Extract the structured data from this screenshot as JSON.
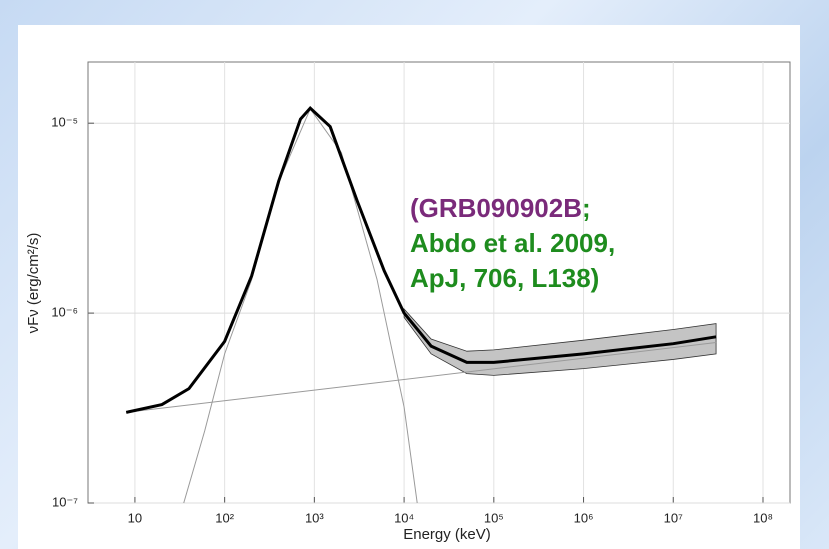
{
  "chart_data": {
    "type": "line",
    "x_label": "Energy (keV)",
    "y_label": "νFν (erg/cm²/s)",
    "log_x": true,
    "log_y": true,
    "grid": true,
    "xlim": [
      3,
      200000000
    ],
    "ylim": [
      1e-07,
      2.1e-05
    ],
    "xticks": [
      {
        "value": 10,
        "label": "10"
      },
      {
        "value": 100,
        "label": "10²"
      },
      {
        "value": 1000,
        "label": "10³"
      },
      {
        "value": 10000,
        "label": "10⁴"
      },
      {
        "value": 100000,
        "label": "10⁵"
      },
      {
        "value": 1000000,
        "label": "10⁶"
      },
      {
        "value": 10000000,
        "label": "10⁷"
      },
      {
        "value": 100000000,
        "label": "10⁸"
      }
    ],
    "yticks": [
      {
        "value": 1e-07,
        "label": "10⁻⁷"
      },
      {
        "value": 1e-06,
        "label": "10⁻⁶"
      },
      {
        "value": 1e-05,
        "label": "10⁻⁵"
      }
    ],
    "band": {
      "color": "#c4c4c4",
      "x": [
        10000,
        20000,
        50000,
        100000,
        1000000,
        10000000,
        30000000
      ],
      "upper": [
        1.05e-06,
        7.3e-07,
        6.3e-07,
        6.4e-07,
        7.2e-07,
        8.2e-07,
        8.8e-07
      ],
      "lower": [
        9.5e-07,
        6.1e-07,
        4.8e-07,
        4.7e-07,
        5.1e-07,
        5.7e-07,
        6.1e-07
      ]
    },
    "series": [
      {
        "color": "#9a9a9a",
        "x": [
          35,
          60,
          100,
          200,
          400,
          900,
          2000,
          5000,
          10000,
          14000
        ],
        "values": [
          1e-07,
          2.4e-07,
          6.1e-07,
          1.5e-06,
          4.9e-06,
          1.19e-05,
          7e-06,
          1.5e-06,
          3.2e-07,
          1e-07
        ]
      },
      {
        "color": "#9a9a9a",
        "x": [
          8,
          30000000
        ],
        "values": [
          3e-07,
          7e-07
        ]
      },
      {
        "color": "#000000",
        "x": [
          8,
          20,
          40,
          100,
          200,
          400,
          700,
          900,
          1500,
          3000,
          6000,
          10000,
          20000,
          50000,
          100000,
          1000000,
          10000000,
          30000000
        ],
        "values": [
          3e-07,
          3.3e-07,
          4e-07,
          7.1e-07,
          1.57e-06,
          4.95e-06,
          1.05e-05,
          1.2e-05,
          9.6e-06,
          3.9e-06,
          1.67e-06,
          1e-06,
          6.7e-07,
          5.5e-07,
          5.5e-07,
          6.1e-07,
          6.9e-07,
          7.5e-07
        ]
      }
    ],
    "annotation": {
      "lines": [
        [
          {
            "text": "(GRB090902B",
            "color": "#7a2a7a"
          },
          {
            "text": ";",
            "color": "#1e8c1e"
          }
        ],
        [
          {
            "text": "Abdo et al. 2009,",
            "color": "#1e8c1e"
          }
        ],
        [
          {
            "text": "ApJ, 706, L138)",
            "color": "#1e8c1e"
          }
        ]
      ]
    }
  }
}
